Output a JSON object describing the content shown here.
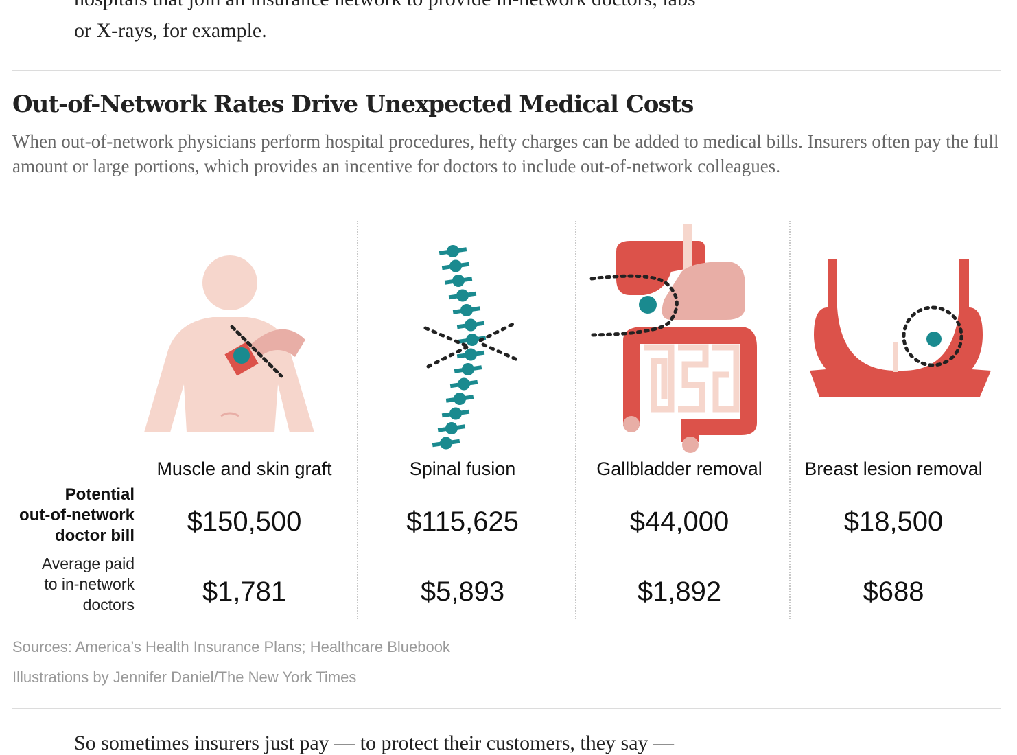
{
  "article": {
    "top_line_1": "hospitals that join an insurance network to provide in-network doctors, labs",
    "top_line_2": "or X-rays, for example.",
    "bottom_line": "So sometimes insurers just pay — to protect their customers, they say —"
  },
  "graphic": {
    "headline": "Out-of-Network Rates Drive Unexpected Medical Costs",
    "summary": "When out-of-network physicians perform hospital procedures, hefty charges can be added to medical bills. Insurers often pay the full amount or large portions, which provides an incentive for doctors to include out-of-network colleagues.",
    "row_label_1_line1": "Potential",
    "row_label_1_line2": "out-of-network",
    "row_label_1_line3": "doctor bill",
    "row_label_2_line1": "Average paid",
    "row_label_2_line2": "to in-network",
    "row_label_2_line3": "doctors",
    "procedures": [
      {
        "name": "Muscle and skin graft",
        "out_of_network_bill": "$150,500",
        "in_network_avg": "$1,781",
        "icon": "torso-graft-icon"
      },
      {
        "name": "Spinal fusion",
        "out_of_network_bill": "$115,625",
        "in_network_avg": "$5,893",
        "icon": "spine-icon"
      },
      {
        "name": "Gallbladder removal",
        "out_of_network_bill": "$44,000",
        "in_network_avg": "$1,892",
        "icon": "digestive-system-icon"
      },
      {
        "name": "Breast lesion removal",
        "out_of_network_bill": "$18,500",
        "in_network_avg": "$688",
        "icon": "breast-lesion-icon"
      }
    ],
    "sources": "Sources: America’s Health Insurance Plans; Healthcare Bluebook",
    "illustrations_credit": "Illustrations by Jennifer Daniel/The New York Times",
    "colors": {
      "skin": "#f6d6cc",
      "red": "#dc524a",
      "teal": "#1a8a8f",
      "pink": "#e8aea6",
      "dots": "#222222"
    }
  }
}
